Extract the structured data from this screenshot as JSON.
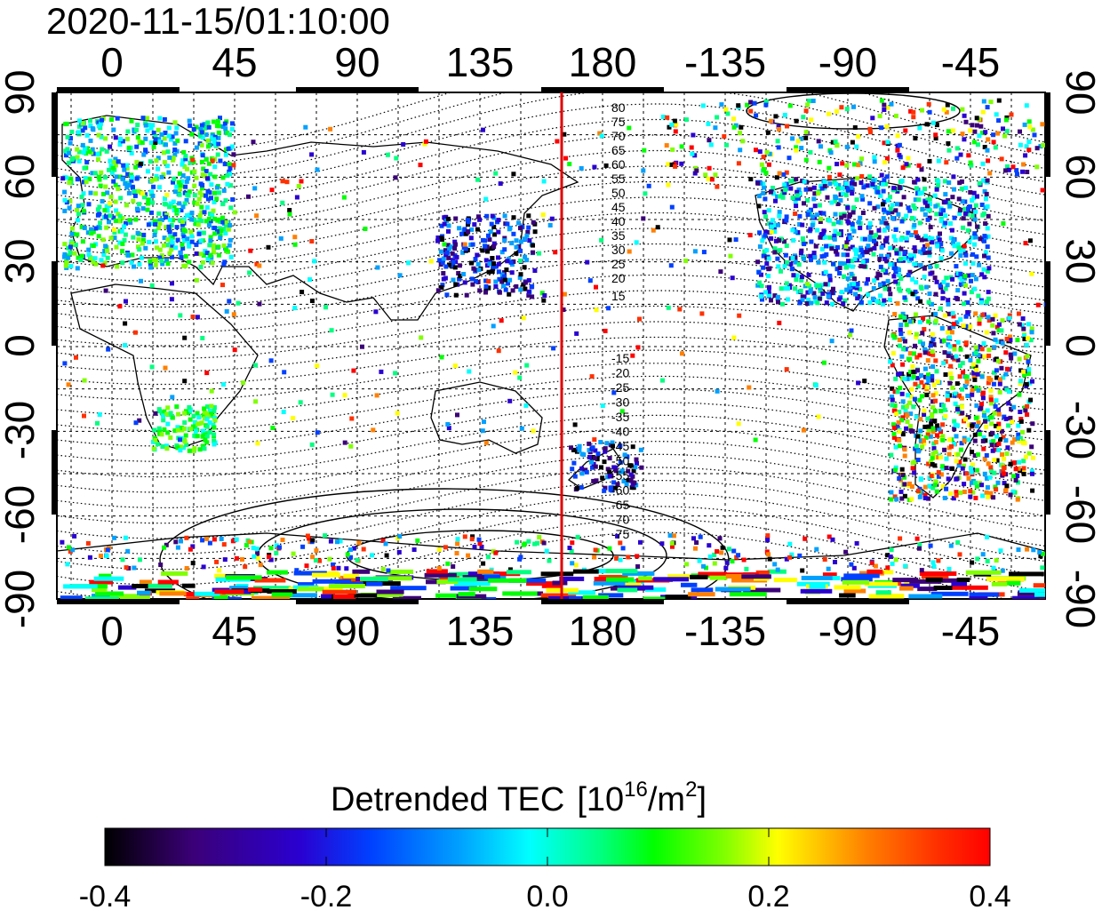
{
  "timestamp": "2020-11-15/01:10:00",
  "map": {
    "lon_ticks_top": [
      "0",
      "45",
      "90",
      "135",
      "180",
      "-135",
      "-90",
      "-45"
    ],
    "lon_ticks_bottom": [
      "0",
      "45",
      "90",
      "135",
      "180",
      "-135",
      "-90",
      "-45"
    ],
    "lat_ticks_left": [
      "90",
      "60",
      "30",
      "0",
      "-30",
      "-60",
      "-90"
    ],
    "lat_ticks_right": [
      "90",
      "60",
      "30",
      "0",
      "-30",
      "-60",
      "-90"
    ],
    "marker_line_longitude": 165,
    "marker_line_color": "#e00000",
    "contour_labels_north": [
      "80",
      "75",
      "70",
      "65",
      "60",
      "55",
      "50",
      "45",
      "40",
      "35",
      "30",
      "25",
      "20",
      "15"
    ],
    "contour_labels_south": [
      "-15",
      "-20",
      "-25",
      "-30",
      "-35",
      "-40",
      "-45",
      "-50",
      "-55",
      "-60",
      "-65",
      "-70",
      "-75"
    ]
  },
  "colorbar": {
    "label_main": "Detrended TEC",
    "label_unit_open": "[10",
    "label_unit_exp": "16",
    "label_unit_mid": "/m",
    "label_unit_exp2": "2",
    "label_unit_close": "]",
    "ticks": [
      "-0.4",
      "-0.2",
      "0.0",
      "0.2",
      "0.4"
    ],
    "range": [
      -0.4,
      0.4
    ],
    "colors": [
      "#000000",
      "#3b0078",
      "#2a00d0",
      "#0040ff",
      "#00a0ff",
      "#00ffff",
      "#00ff80",
      "#00ff00",
      "#80ff00",
      "#ffff00",
      "#ff8000",
      "#ff3000",
      "#ff0000"
    ]
  }
}
